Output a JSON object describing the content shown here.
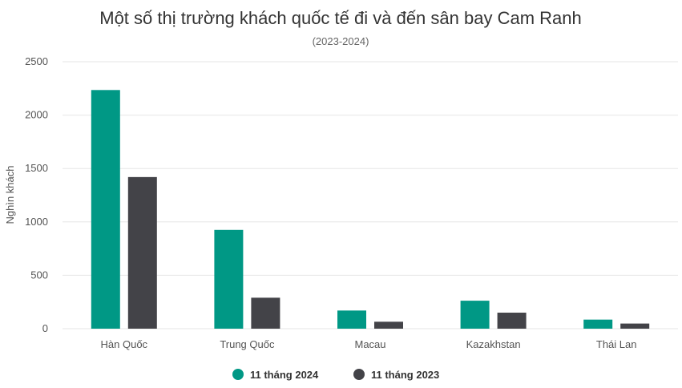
{
  "chart_data": {
    "type": "bar",
    "title": "Một số thị trường khách quốc tế đi và đến sân bay Cam Ranh",
    "subtitle": "(2023-2024)",
    "ylabel": "Nghìn khách",
    "xlabel": "",
    "ylim": [
      0,
      2500
    ],
    "yticks": [
      "0",
      "500",
      "1000",
      "1500",
      "2000",
      "2500"
    ],
    "grid": true,
    "legend_position": "bottom-center",
    "categories": [
      "Hàn Quốc",
      "Trung Quốc",
      "Macau",
      "Kazakhstan",
      "Thái Lan"
    ],
    "series": [
      {
        "name": "11 tháng 2024",
        "color": "#009885",
        "values": [
          2235,
          925,
          170,
          262,
          85
        ]
      },
      {
        "name": "11 tháng 2023",
        "color": "#434348",
        "values": [
          1420,
          290,
          65,
          150,
          48
        ]
      }
    ]
  }
}
